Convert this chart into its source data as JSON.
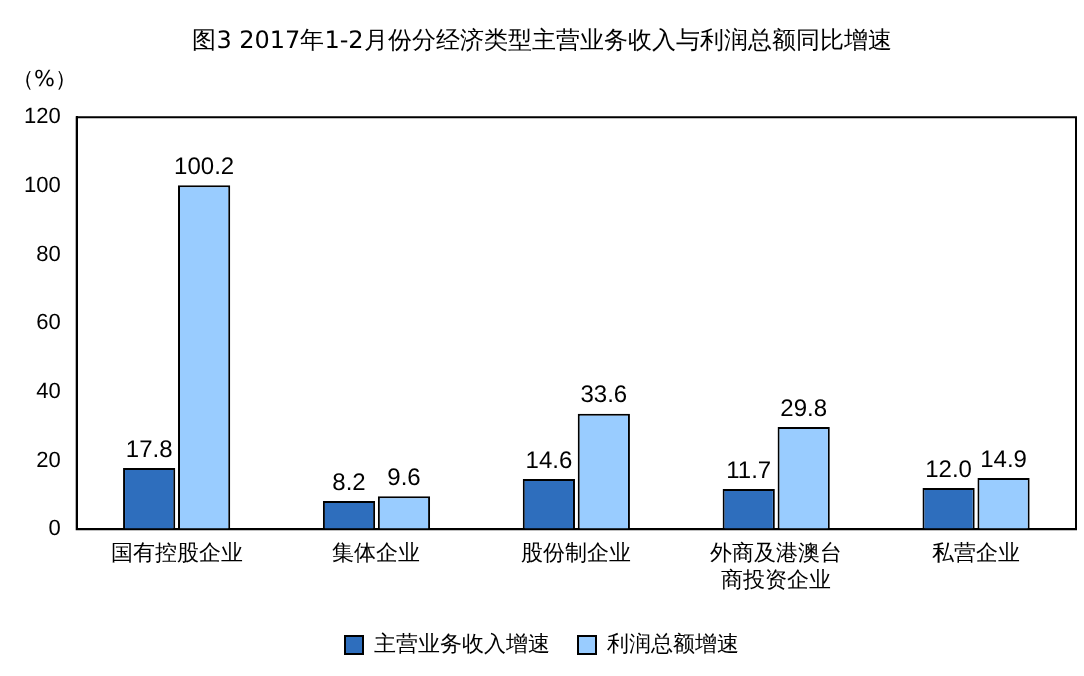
{
  "chart_data": {
    "type": "bar",
    "title": "图3 2017年1-2月份分经济类型主营业务收入与利润总额同比增速",
    "ylabel": "（%）",
    "categories": [
      "国有控股企业",
      "集体企业",
      "股份制企业",
      "外商及港澳台商投资企业",
      "私营企业"
    ],
    "series": [
      {
        "name": "主营业务收入增速",
        "color": "#2e6ebd",
        "values": [
          17.8,
          8.2,
          14.6,
          11.7,
          12.0
        ],
        "value_labels": [
          "17.8",
          "8.2",
          "14.6",
          "11.7",
          "12.0"
        ]
      },
      {
        "name": "利润总额增速",
        "color": "#99ccff",
        "values": [
          100.2,
          9.6,
          33.6,
          29.8,
          14.9
        ],
        "value_labels": [
          "100.2",
          "9.6",
          "33.6",
          "29.8",
          "14.9"
        ]
      }
    ],
    "ylim": [
      0,
      120
    ],
    "yticks": [
      0,
      20,
      40,
      60,
      80,
      100,
      120
    ],
    "grid": false,
    "legend": "bottom"
  }
}
